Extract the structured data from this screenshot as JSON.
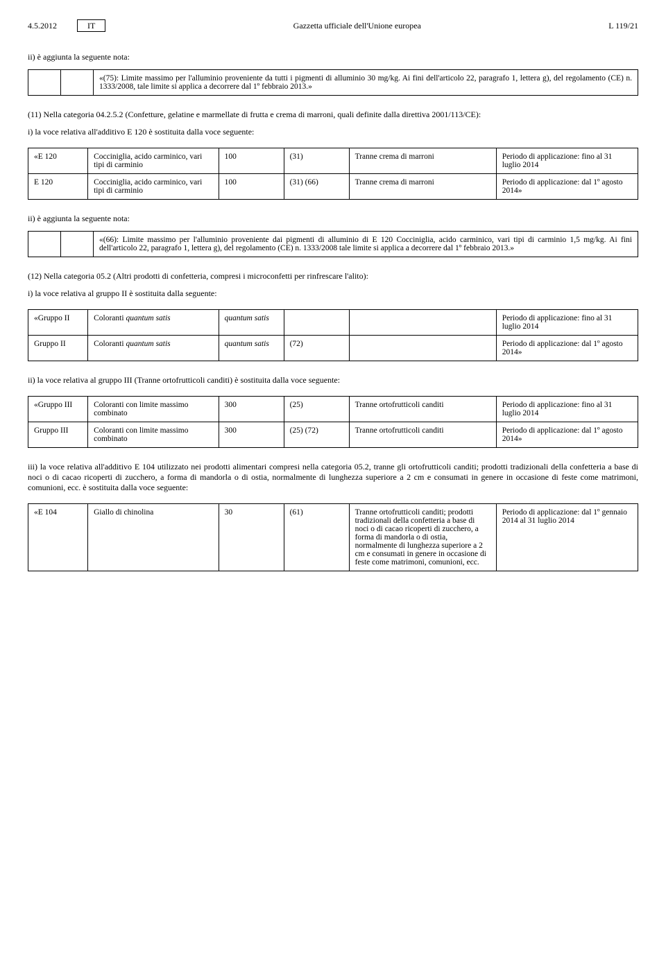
{
  "header": {
    "date": "4.5.2012",
    "lang": "IT",
    "journal": "Gazzetta ufficiale dell'Unione europea",
    "page": "L 119/21"
  },
  "sec1": {
    "intro": "ii) è aggiunta la seguente nota:",
    "note": "«(75): Limite massimo per l'alluminio proveniente da tutti i pigmenti di alluminio 30 mg/kg. Ai fini dell'articolo 22, paragrafo 1, lettera g), del regolamento (CE) n. 1333/2008, tale limite si applica a decorrere dal 1º febbraio 2013.»",
    "cat": "(11) Nella categoria 04.2.5.2 (Confetture, gelatine e marmellate di frutta e crema di marroni, quali definite dalla direttiva 2001/113/CE):",
    "sub": "i) la voce relativa all'additivo E 120 è sostituita dalla voce seguente:",
    "rows": [
      {
        "c0": "«E 120",
        "c1": "Cocciniglia, acido carminico, vari tipi di carminio",
        "c2": "100",
        "c3": "(31)",
        "c4": "Tranne crema di marroni",
        "c5": "Periodo di applicazione: fino al 31 luglio 2014"
      },
      {
        "c0": "E 120",
        "c1": "Cocciniglia, acido carminico, vari tipi di carminio",
        "c2": "100",
        "c3": "(31) (66)",
        "c4": "Tranne crema di marroni",
        "c5": "Periodo di applicazione: dal 1º agosto 2014»"
      }
    ]
  },
  "sec2": {
    "intro": "ii) è aggiunta la seguente nota:",
    "note": "«(66): Limite massimo per l'alluminio proveniente dai pigmenti di alluminio di E 120 Cocciniglia, acido carminico, vari tipi di carminio 1,5 mg/kg. Ai fini dell'articolo 22, paragrafo 1, lettera g), del regolamento (CE) n. 1333/2008 tale limite si applica a decorrere dal 1º febbraio 2013.»",
    "cat": "(12) Nella categoria 05.2 (Altri prodotti di confetteria, compresi i microconfetti per rinfrescare l'alito):",
    "sub": "i) la voce relativa al gruppo II è sostituita dalla seguente:",
    "rows": [
      {
        "c0": "«Gruppo II",
        "c1a": "Coloranti ",
        "c1i": "quantum satis",
        "c2i": "quantum satis",
        "c3": "",
        "c4": "",
        "c5": "Periodo di applicazione: fino al 31 luglio 2014"
      },
      {
        "c0": "Gruppo II",
        "c1a": "Coloranti ",
        "c1i": "quantum satis",
        "c2i": "quantum satis",
        "c3": "(72)",
        "c4": "",
        "c5": "Periodo di applicazione: dal 1º agosto 2014»"
      }
    ]
  },
  "sec3": {
    "intro": "ii) la voce relativa al gruppo III (Tranne ortofrutticoli canditi) è sostituita dalla voce seguente:",
    "rows": [
      {
        "c0": "«Gruppo III",
        "c1": "Coloranti con limite massimo combinato",
        "c2": "300",
        "c3": "(25)",
        "c4": "Tranne ortofrutticoli canditi",
        "c5": "Periodo di applicazione: fino al 31 luglio 2014"
      },
      {
        "c0": "Gruppo III",
        "c1": "Coloranti con limite massimo combinato",
        "c2": "300",
        "c3": "(25) (72)",
        "c4": "Tranne ortofrutticoli canditi",
        "c5": "Periodo di applicazione: dal 1º agosto 2014»"
      }
    ]
  },
  "sec4": {
    "intro": "iii) la voce relativa all'additivo E 104 utilizzato nei prodotti alimentari compresi nella categoria 05.2, tranne gli ortofrutticoli canditi; prodotti tradizionali della confetteria a base di noci o di cacao ricoperti di zucchero, a forma di mandorla o di ostia, normalmente di lunghezza superiore a 2 cm e consumati in genere in occasione di feste come matrimoni, comunioni, ecc. è sostituita dalla voce seguente:",
    "rows": [
      {
        "c0": "«E 104",
        "c1": "Giallo di chinolina",
        "c2": "30",
        "c3": "(61)",
        "c4": "Tranne ortofrutticoli canditi; prodotti tradizionali della confetteria a base di noci o di cacao ricoperti di zucchero, a forma di mandorla o di ostia, normalmente di lunghezza superiore a 2 cm e consumati in genere in occasione di feste come matrimoni, comunioni, ecc.",
        "c5": "Periodo di applicazione: dal 1º gennaio 2014 al 31 luglio 2014"
      }
    ]
  }
}
